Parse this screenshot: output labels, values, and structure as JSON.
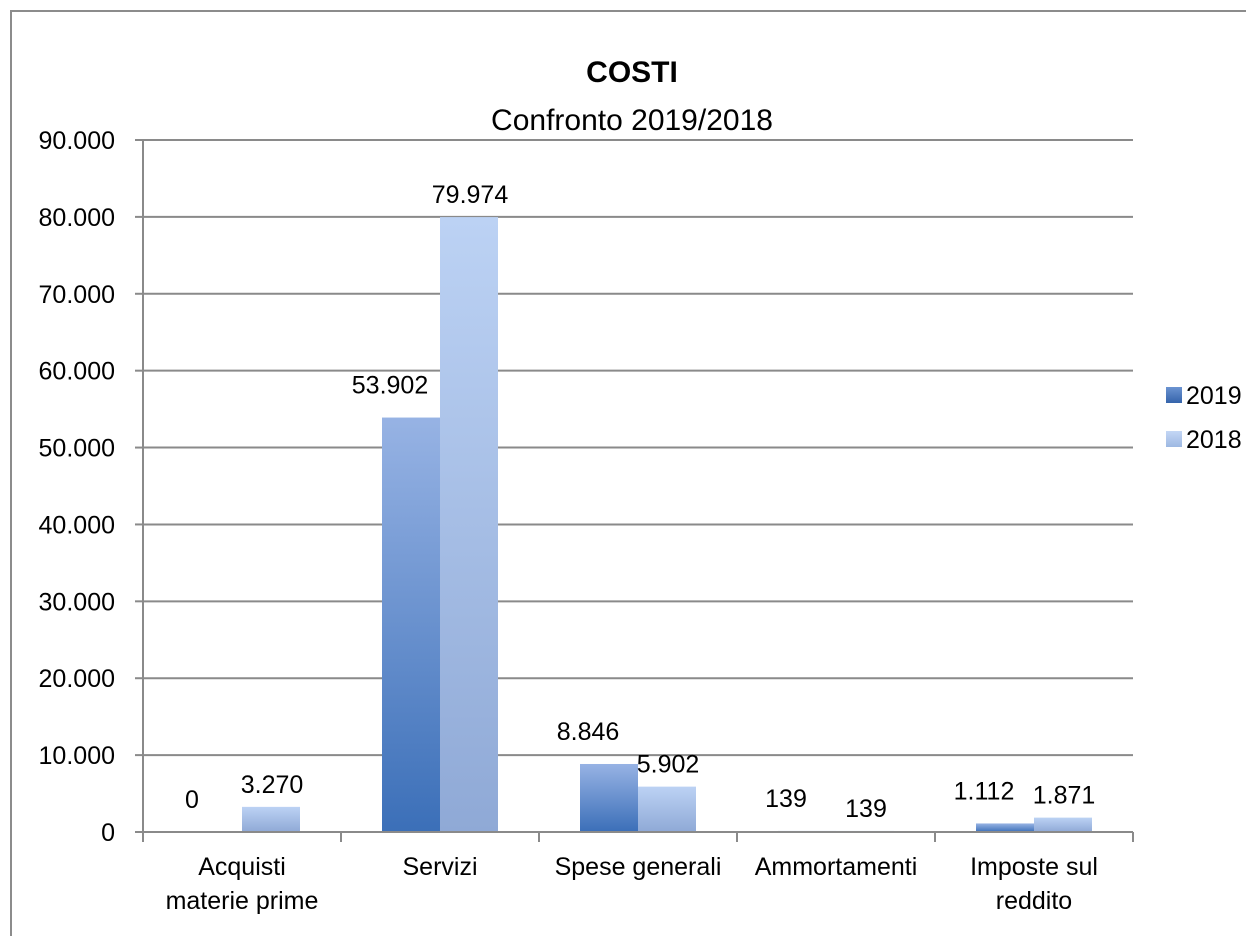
{
  "chart_data": {
    "type": "bar",
    "title": "COSTI",
    "subtitle": "Confronto 2019/2018",
    "categories": [
      [
        "Acquisti",
        "materie prime"
      ],
      [
        "Servizi"
      ],
      [
        "Spese generali"
      ],
      [
        "Ammortamenti"
      ],
      [
        "Imposte sul",
        "reddito"
      ]
    ],
    "series": [
      {
        "name": "2019",
        "values": [
          0,
          53902,
          8846,
          139,
          1112
        ],
        "labels": [
          "0",
          "53.902",
          "8.846",
          "139",
          "1.112"
        ],
        "color": "#4a7dc4"
      },
      {
        "name": "2018",
        "values": [
          3270,
          79974,
          5902,
          139,
          1871
        ],
        "labels": [
          "3.270",
          "79.974",
          "5.902",
          "139",
          "1.871"
        ],
        "color": "#a8c4ee"
      }
    ],
    "ylim": [
      0,
      90000
    ],
    "yticks": [
      0,
      10000,
      20000,
      30000,
      40000,
      50000,
      60000,
      70000,
      80000,
      90000
    ],
    "ytick_labels": [
      "0",
      "10.000",
      "20.000",
      "30.000",
      "40.000",
      "50.000",
      "60.000",
      "70.000",
      "80.000",
      "90.000"
    ],
    "grid": true,
    "legend_position": "right"
  }
}
